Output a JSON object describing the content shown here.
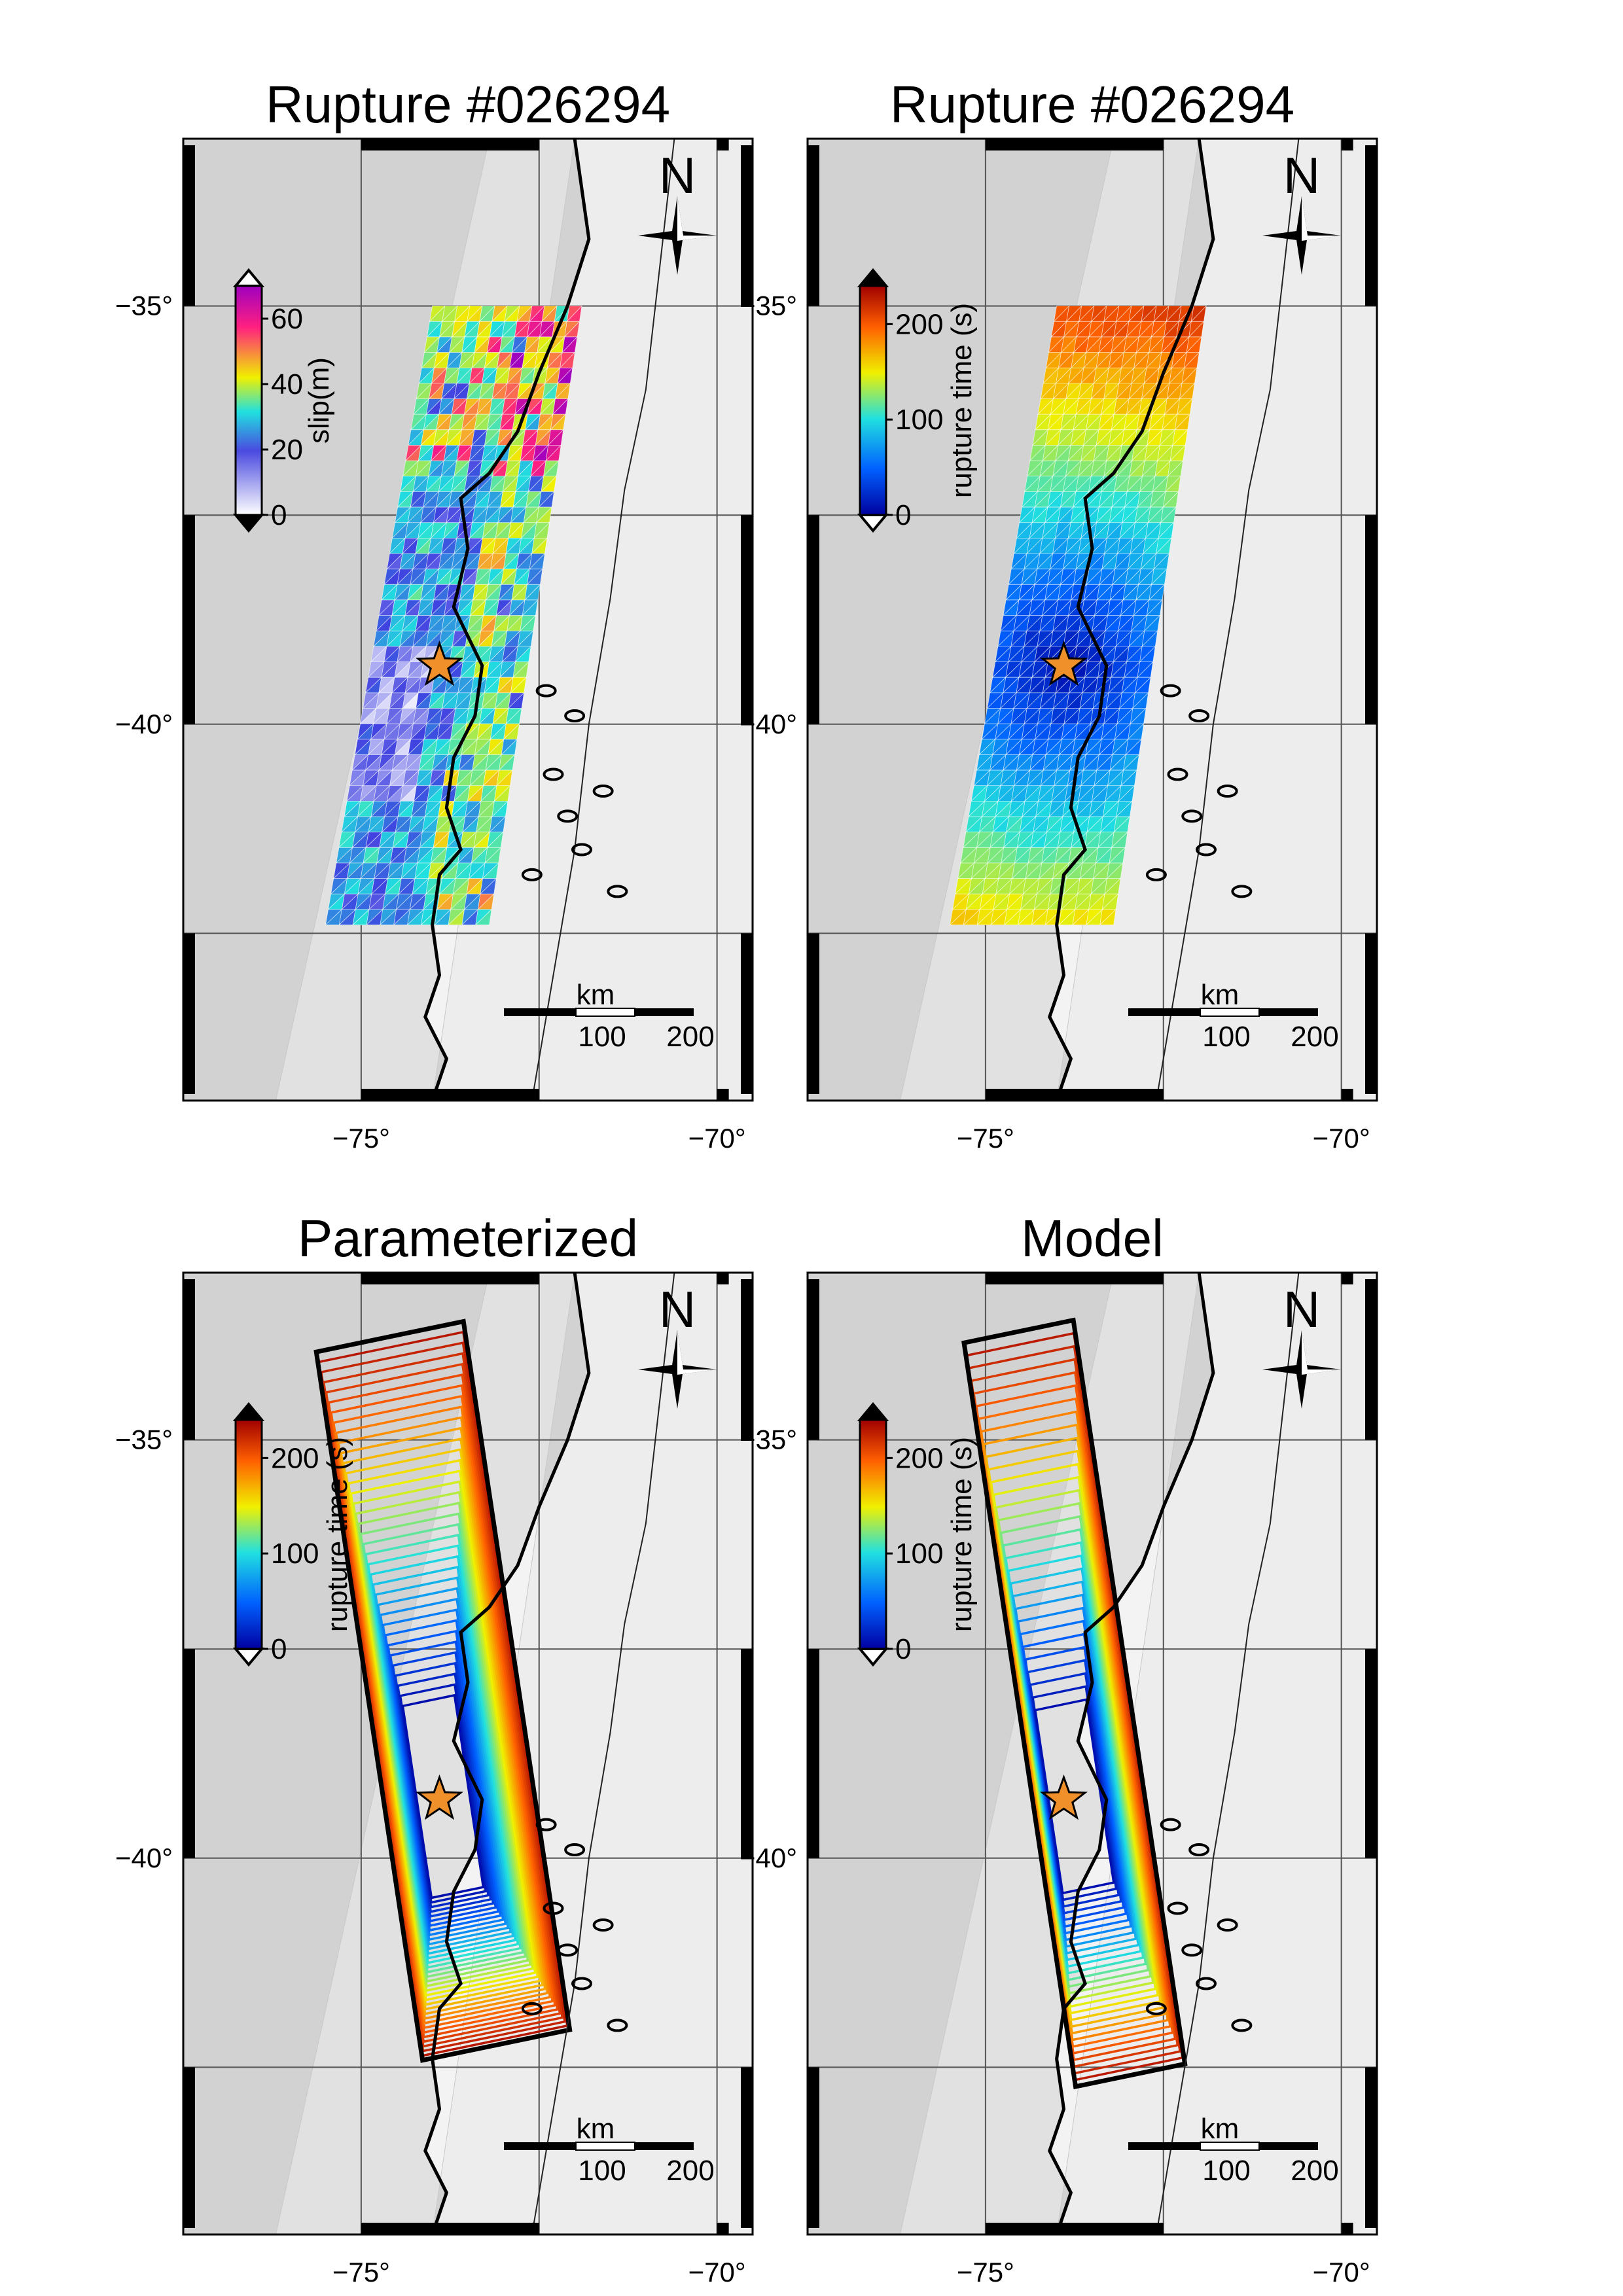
{
  "figure": {
    "panels": [
      {
        "id": "slip",
        "title": "Rupture #026294",
        "style": "triangles",
        "colorbar": {
          "label": "slip(m)",
          "ticks": [
            "0",
            "20",
            "40",
            "60"
          ],
          "tick_values": [
            0,
            20,
            40,
            60
          ],
          "max": 70,
          "colors": [
            "#ffffff",
            "#4040e0",
            "#20e0e0",
            "#f0f000",
            "#ff2080",
            "#a000c0"
          ]
        }
      },
      {
        "id": "time",
        "title": "Rupture #026294",
        "style": "triangles",
        "colorbar": {
          "label": "rupture time (s)",
          "ticks": [
            "0",
            "100",
            "200"
          ],
          "tick_values": [
            0,
            100,
            200
          ],
          "max": 240,
          "colors": [
            "#0000a0",
            "#0060ff",
            "#20e0e0",
            "#f0f000",
            "#ff6000",
            "#a00000"
          ]
        }
      },
      {
        "id": "param",
        "title": "Parameterized",
        "style": "rects",
        "colorbar": {
          "label": "rupture time (s)",
          "ticks": [
            "0",
            "100",
            "200"
          ],
          "tick_values": [
            0,
            100,
            200
          ],
          "max": 240,
          "colors": [
            "#0000a0",
            "#0060ff",
            "#20e0e0",
            "#f0f000",
            "#ff6000",
            "#a00000"
          ]
        }
      },
      {
        "id": "model",
        "title": "Model",
        "style": "rects",
        "colorbar": {
          "label": "rupture time (s)",
          "ticks": [
            "0",
            "100",
            "200"
          ],
          "tick_values": [
            0,
            100,
            200
          ],
          "max": 240,
          "colors": [
            "#0000a0",
            "#0060ff",
            "#20e0e0",
            "#f0f000",
            "#ff6000",
            "#a00000"
          ]
        }
      }
    ],
    "axes": {
      "lat_ticks": [
        "−35°",
        "−40°"
      ],
      "lat_values": [
        -35,
        -40
      ],
      "lon_ticks": [
        "−75°",
        "−70°"
      ],
      "lon_values": [
        -75,
        -70
      ]
    },
    "north_arrow": "N",
    "scale_bar": {
      "unit": "km",
      "ticks": [
        "100",
        "200"
      ]
    },
    "epicenter": {
      "lon": -73.9,
      "lat": -39.3,
      "marker": "star",
      "color": "#f0902a"
    },
    "colors": {
      "ocean": "#d2d2d2",
      "land": "#ededed",
      "coast": "#000000"
    }
  }
}
